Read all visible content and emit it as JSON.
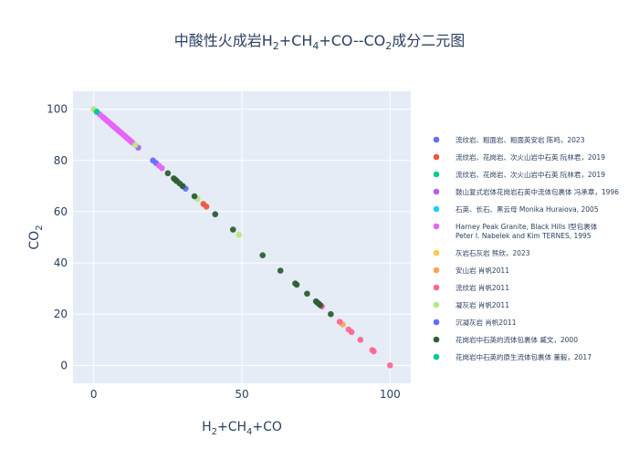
{
  "chart_data": {
    "type": "scatter",
    "title": {
      "prefix": "中酸性火成岩H",
      "s1": "2",
      "mid1": "+CH",
      "s2": "4",
      "mid2": "+CO--CO",
      "s3": "2",
      "suffix": "成分二元图"
    },
    "xlabel": {
      "prefix": "H",
      "s1": "2",
      "mid1": "+CH",
      "s2": "4",
      "suffix": "+CO"
    },
    "ylabel": {
      "prefix": "CO",
      "s1": "2"
    },
    "xlim": [
      -7,
      107
    ],
    "ylim": [
      -7,
      107
    ],
    "xticks": [
      0,
      50,
      100
    ],
    "yticks": [
      0,
      20,
      40,
      60,
      80,
      100
    ],
    "grid": true,
    "legend_position": "right",
    "series": [
      {
        "name": "流纹岩、粗面岩、粗面英安岩 陈鸣，2023",
        "color": "#636efa",
        "points": [
          [
            20,
            80
          ],
          [
            21,
            79
          ],
          [
            28,
            72
          ],
          [
            31,
            69
          ]
        ]
      },
      {
        "name": "流纹岩、花岗岩、次火山岩中石英 阮林君，2019",
        "color": "#ef553b",
        "points": [
          [
            37,
            63
          ],
          [
            38,
            62
          ]
        ]
      },
      {
        "name": "流纹岩、花岗岩、次火山岩中石英 阮林君，2019",
        "color": "#00cc96",
        "points": [
          [
            1,
            99
          ]
        ]
      },
      {
        "name": "鼓山复式岩体花岗岩石英中流体包裹体 冯承章，1996",
        "color": "#ab63fa",
        "points": [
          [
            15,
            85
          ]
        ]
      },
      {
        "name": "石英、长石、黑云母 Monika Huraiova, 2005",
        "color": "#19d3f3",
        "points": [
          [
            1,
            99
          ]
        ]
      },
      {
        "name": "Harney   Peak Granite, Black Hills I型包裹体",
        "name2": "Peter I. Nabelek and Kim TERNES, 1995",
        "color": "#e763fa",
        "points": [
          [
            2,
            98
          ],
          [
            3,
            97
          ],
          [
            3.5,
            96.5
          ],
          [
            4,
            96
          ],
          [
            4.5,
            95.5
          ],
          [
            5,
            95
          ],
          [
            5.5,
            94.5
          ],
          [
            6,
            94
          ],
          [
            6.5,
            93.5
          ],
          [
            7,
            93
          ],
          [
            7.5,
            92.5
          ],
          [
            8,
            92
          ],
          [
            8.5,
            91.5
          ],
          [
            9,
            91
          ],
          [
            9.5,
            90.5
          ],
          [
            10,
            90
          ],
          [
            10.5,
            89.5
          ],
          [
            11,
            89
          ],
          [
            11.5,
            88.5
          ],
          [
            12,
            88
          ],
          [
            12.5,
            87.5
          ],
          [
            13,
            87
          ],
          [
            22,
            78
          ],
          [
            23,
            77
          ]
        ]
      },
      {
        "name": "灰岩石灰岩 熊欣，2023",
        "color": "#fecb52",
        "points": [
          [
            0,
            100
          ]
        ]
      },
      {
        "name": "安山岩 肖帆2011",
        "color": "#ffa15a",
        "points": [
          [
            84,
            16
          ]
        ]
      },
      {
        "name": "流纹岩 肖帆2011",
        "color": "#ff6692",
        "points": [
          [
            77,
            23
          ],
          [
            83,
            17
          ],
          [
            86,
            14
          ],
          [
            87,
            13
          ],
          [
            90,
            10
          ],
          [
            94,
            6
          ],
          [
            94.5,
            5.5
          ],
          [
            100,
            0
          ]
        ]
      },
      {
        "name": "凝灰岩 肖帆2011",
        "color": "#b6e880",
        "points": [
          [
            0,
            100
          ],
          [
            14,
            86
          ],
          [
            35,
            65
          ],
          [
            49,
            51
          ]
        ]
      },
      {
        "name": "沉凝灰岩 肖帆2011",
        "color": "#636efa",
        "points": [
          [
            30,
            70
          ]
        ]
      },
      {
        "name": "花岗岩中石英的流体包裹体 臧文，2000",
        "color": "#2e5e34",
        "points": [
          [
            25,
            75
          ],
          [
            27,
            73
          ],
          [
            27.5,
            72.5
          ],
          [
            28,
            72
          ],
          [
            29,
            71
          ],
          [
            30,
            70
          ],
          [
            34,
            66
          ],
          [
            41,
            59
          ],
          [
            47,
            53
          ],
          [
            57,
            43
          ],
          [
            63,
            37
          ],
          [
            68,
            32
          ],
          [
            68.5,
            31.5
          ],
          [
            72,
            28
          ],
          [
            75,
            25
          ],
          [
            75.5,
            24.5
          ],
          [
            76,
            24
          ],
          [
            76.5,
            23.5
          ],
          [
            80,
            20
          ]
        ]
      },
      {
        "name": "花岗岩中石英的原生流体包裹体 董毅，2017",
        "color": "#00cc96",
        "points": [
          [
            1,
            99
          ]
        ]
      }
    ]
  }
}
